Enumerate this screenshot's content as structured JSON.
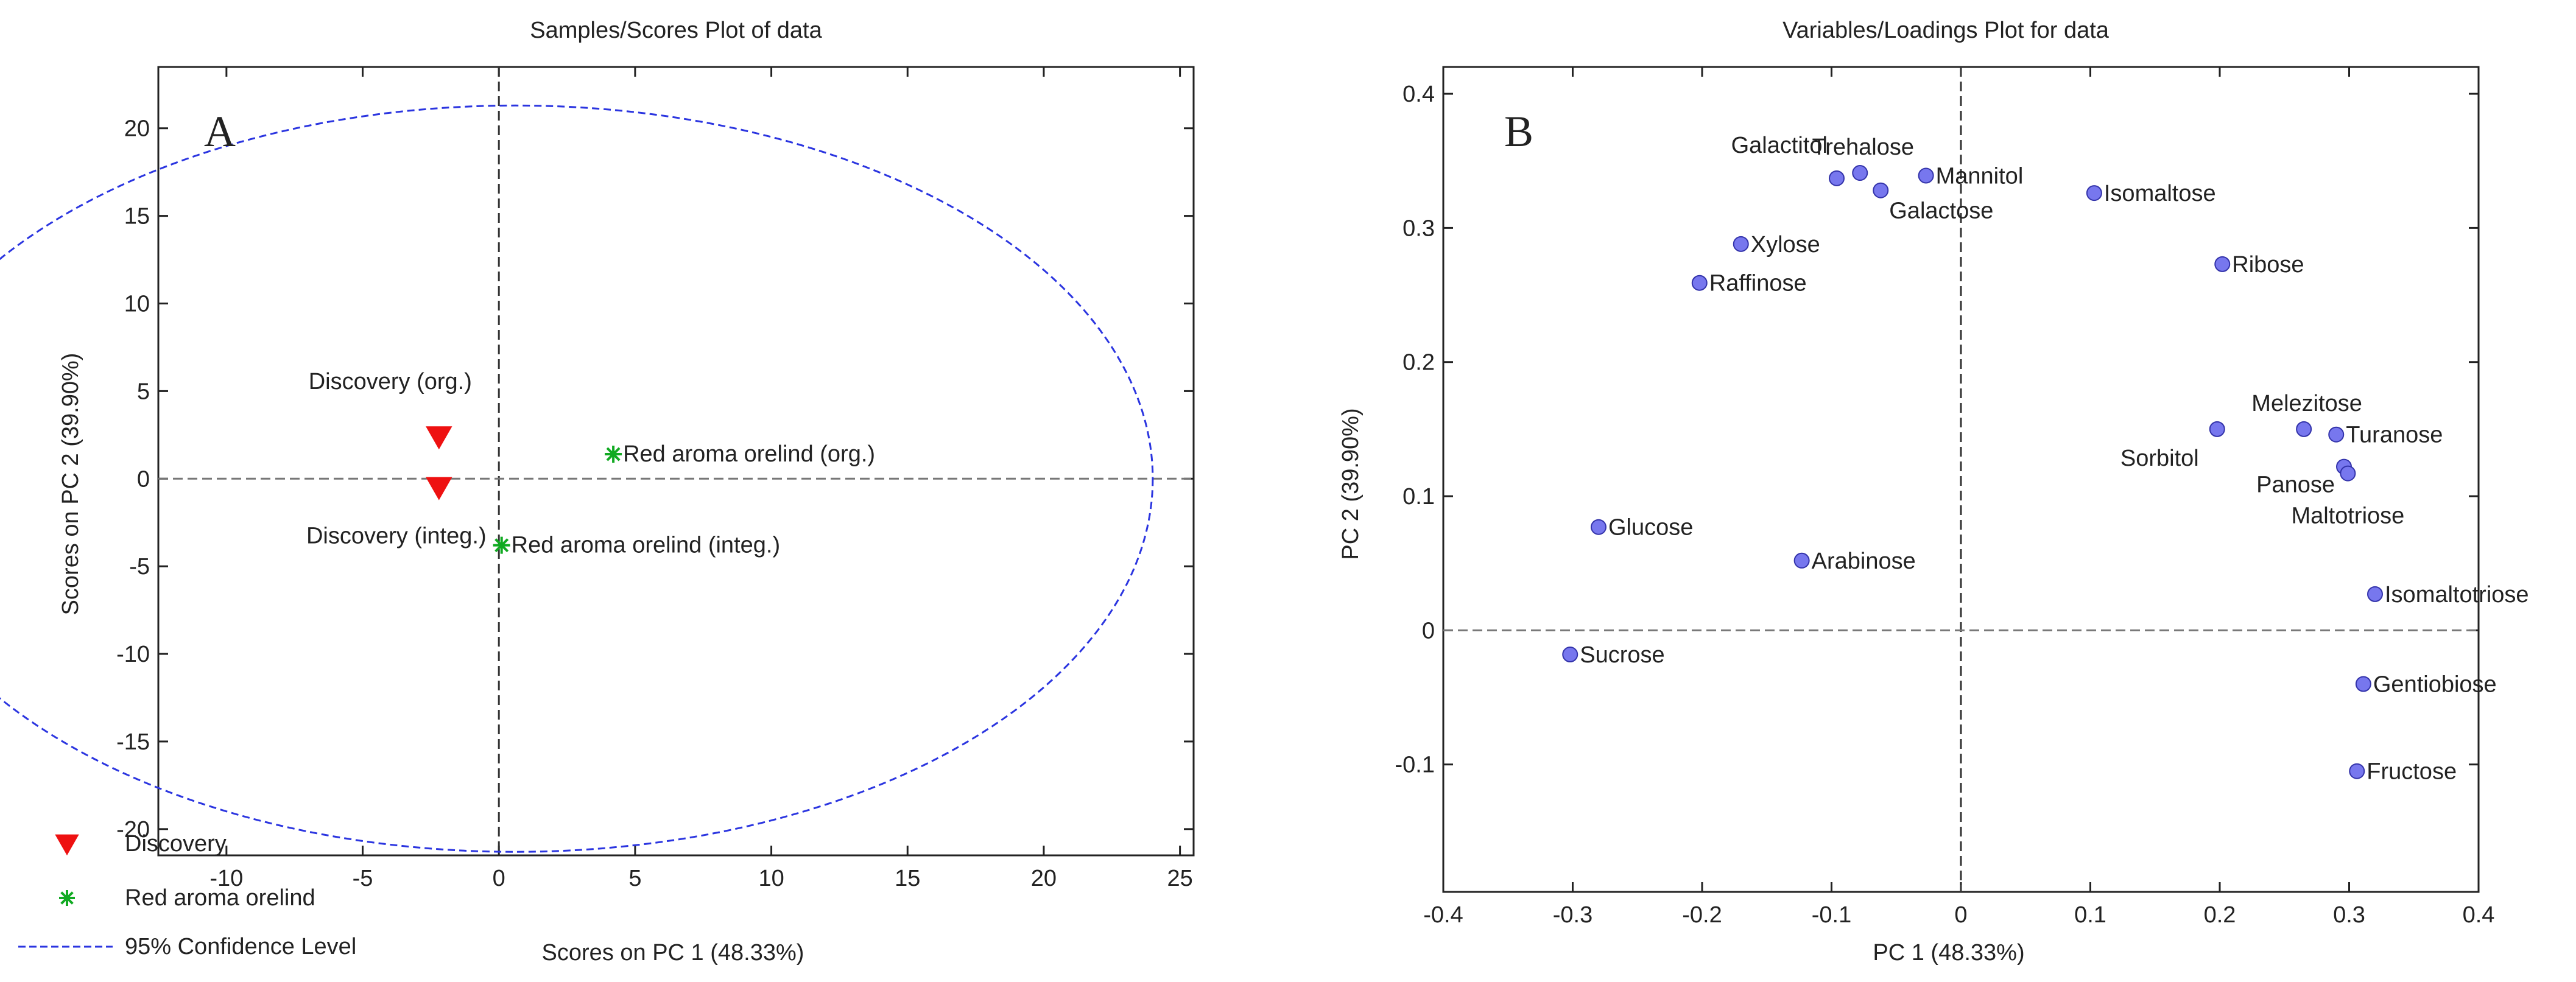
{
  "chart_data": [
    {
      "type": "scatter",
      "panel_letter": "A",
      "title": "Samples/Scores Plot of data",
      "xlabel": "Scores on PC 1 (48.33%)",
      "ylabel": "Scores on PC 2 (39.90%)",
      "xlim": [
        -12.5,
        25.5
      ],
      "ylim": [
        -21.5,
        23.5
      ],
      "xticks": [
        -10,
        -5,
        0,
        5,
        10,
        15,
        20,
        25
      ],
      "yticks": [
        -20,
        -15,
        -10,
        -5,
        0,
        5,
        10,
        15,
        20
      ],
      "xtick_labels": [
        "-10",
        "-5",
        "0",
        "5",
        "10",
        "15",
        "20",
        "25"
      ],
      "ytick_labels": [
        "-20",
        "-15",
        "-10",
        "-5",
        "0",
        "5",
        "10",
        "15",
        "20"
      ],
      "reference_lines": {
        "x": 0,
        "y": 0
      },
      "ellipse": {
        "label": "95% Confidence Level",
        "center": [
          0.6,
          0
        ],
        "radius_x": 23.4,
        "radius_y": 21.3,
        "color": "#2b35e0"
      },
      "series": [
        {
          "name": "Discovery",
          "marker": "triangle-down",
          "color": "#ee1111",
          "points": [
            {
              "x": -2.2,
              "y": 2.4,
              "label": "Discovery (org.)",
              "label_pos": "above"
            },
            {
              "x": -2.2,
              "y": -0.5,
              "label": "Discovery (integ.)",
              "label_pos": "below"
            }
          ]
        },
        {
          "name": "Red aroma orelind",
          "marker": "asterisk",
          "color": "#11aa22",
          "points": [
            {
              "x": 4.2,
              "y": 1.4,
              "label": "Red aroma orelind (org.)",
              "label_pos": "right"
            },
            {
              "x": 0.1,
              "y": -3.8,
              "label": "Red aroma orelind (integ.)",
              "label_pos": "right"
            }
          ]
        }
      ],
      "legend": {
        "placement": "bottom-left",
        "entries": [
          {
            "label": "Discovery",
            "marker": "triangle-down",
            "color": "#ee1111"
          },
          {
            "label": "Red aroma orelind",
            "marker": "asterisk",
            "color": "#11aa22"
          },
          {
            "label": "95% Confidence Level",
            "marker": "dashed-line",
            "color": "#2b35e0"
          }
        ]
      }
    },
    {
      "type": "scatter",
      "panel_letter": "B",
      "title": "Variables/Loadings Plot for data",
      "xlabel": "PC 1 (48.33%)",
      "ylabel": "PC 2 (39.90%)",
      "xlim": [
        -0.4,
        0.4
      ],
      "ylim": [
        -0.195,
        0.42
      ],
      "xticks": [
        -0.4,
        -0.3,
        -0.2,
        -0.1,
        0,
        0.1,
        0.2,
        0.3,
        0.4
      ],
      "yticks": [
        -0.1,
        0,
        0.1,
        0.2,
        0.3,
        0.4
      ],
      "xtick_labels": [
        "-0.4",
        "-0.3",
        "-0.2",
        "-0.1",
        "0",
        "0.1",
        "0.2",
        "0.3",
        "0.4"
      ],
      "ytick_labels": [
        "-0.1",
        "0",
        "0.1",
        "0.2",
        "0.3",
        "0.4"
      ],
      "reference_lines": {
        "x": 0,
        "y": 0
      },
      "point_color": "#7777ee",
      "points": [
        {
          "name": "Galactitol",
          "x": -0.096,
          "y": 0.337,
          "label_pos": "upper-left"
        },
        {
          "name": "Trehalose",
          "x": -0.078,
          "y": 0.341,
          "label_pos": "above"
        },
        {
          "name": "Mannitol",
          "x": -0.027,
          "y": 0.339,
          "label_pos": "right"
        },
        {
          "name": "Galactose",
          "x": -0.062,
          "y": 0.328,
          "label_pos": "right-down"
        },
        {
          "name": "Isomaltose",
          "x": 0.103,
          "y": 0.326,
          "label_pos": "right"
        },
        {
          "name": "Xylose",
          "x": -0.17,
          "y": 0.288,
          "label_pos": "right"
        },
        {
          "name": "Ribose",
          "x": 0.202,
          "y": 0.273,
          "label_pos": "right"
        },
        {
          "name": "Raffinose",
          "x": -0.202,
          "y": 0.259,
          "label_pos": "right"
        },
        {
          "name": "Melezitose",
          "x": 0.265,
          "y": 0.15,
          "label_pos": "above"
        },
        {
          "name": "Sorbitol",
          "x": 0.198,
          "y": 0.15,
          "label_pos": "left-below"
        },
        {
          "name": "Turanose",
          "x": 0.29,
          "y": 0.146,
          "label_pos": "right"
        },
        {
          "name": "Panose",
          "x": 0.296,
          "y": 0.122,
          "label_pos": "left"
        },
        {
          "name": "Maltotriose",
          "x": 0.299,
          "y": 0.117,
          "label_pos": "below"
        },
        {
          "name": "Glucose",
          "x": -0.28,
          "y": 0.077,
          "label_pos": "right"
        },
        {
          "name": "Arabinose",
          "x": -0.123,
          "y": 0.052,
          "label_pos": "right"
        },
        {
          "name": "Isomaltotriose",
          "x": 0.32,
          "y": 0.027,
          "label_pos": "right"
        },
        {
          "name": "Sucrose",
          "x": -0.302,
          "y": -0.018,
          "label_pos": "right"
        },
        {
          "name": "Gentiobiose",
          "x": 0.311,
          "y": -0.04,
          "label_pos": "right"
        },
        {
          "name": "Fructose",
          "x": 0.306,
          "y": -0.105,
          "label_pos": "right"
        }
      ]
    }
  ]
}
